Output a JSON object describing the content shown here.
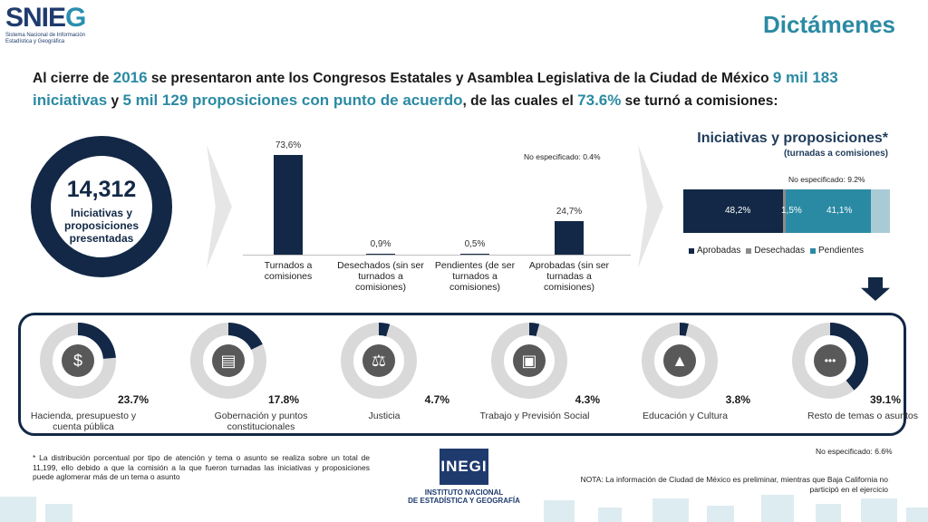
{
  "logo": {
    "word_a": "SNI",
    "word_b": "E",
    "word_c": "G",
    "subtitle": "Sistema Nacional de Información Estadística y Geográfica"
  },
  "page_title": "Dictámenes",
  "headline": {
    "p1": "Al cierre de ",
    "year": "2016",
    "p2": " se presentaron ante los Congresos Estatales y Asamblea Legislativa de la Ciudad de México ",
    "iniciativas": "9 mil 183 iniciativas",
    "p3": " y ",
    "proposiciones": "5 mil 129 proposiciones con punto de acuerdo",
    "p4": ", de las cuales el ",
    "pct": "73.6%",
    "p5": " se turnó a comisiones:"
  },
  "total": {
    "value": "14,312",
    "label": "Iniciativas y proposiciones presentadas"
  },
  "chart_data": [
    {
      "type": "bar",
      "categories": [
        "Turnados a comisiones",
        "Desechados (sin ser turnados a comisiones)",
        "Pendientes (de ser turnados a comisiones)",
        "Aprobadas (sin ser turnadas a comisiones)"
      ],
      "values": [
        73.6,
        0.9,
        0.5,
        24.7
      ],
      "value_labels": [
        "73,6%",
        "0,9%",
        "0,5%",
        "24,7%"
      ],
      "note": "No especificado: 0.4%",
      "ylim": [
        0,
        80
      ]
    },
    {
      "type": "bar",
      "stacked": true,
      "title": "Iniciativas y proposiciones*",
      "subtitle": "(turnadas a comisiones)",
      "series": [
        {
          "name": "Aprobadas",
          "value": 48.2,
          "label": "48,2%",
          "color": "#122846"
        },
        {
          "name": "Desechadas",
          "value": 1.5,
          "label": "1,5%",
          "color": "#8c8c8c"
        },
        {
          "name": "Pendientes",
          "value": 41.1,
          "label": "41,1%",
          "color": "#2b8aa3"
        }
      ],
      "note": "No especificado: 9.2%",
      "legend": "bottom"
    },
    {
      "type": "pie",
      "title": "",
      "categories": [
        "Hacienda, presupuesto y cuenta pública",
        "Gobernación y puntos constitucionales",
        "Justicia",
        "Trabajo y Previsión Social",
        "Educación y Cultura",
        "Resto de temas o asuntos"
      ],
      "values": [
        23.7,
        17.8,
        4.7,
        4.3,
        3.8,
        39.1
      ],
      "value_labels": [
        "23.7%",
        "17.8%",
        "4.7%",
        "4.3%",
        "3.8%",
        "39.1%"
      ],
      "icons": [
        "money-bag-icon",
        "book-icon",
        "gavel-icon",
        "briefcase-icon",
        "graduation-cap-icon",
        "more-dots-icon"
      ],
      "note": "No especificado: 6.6%"
    }
  ],
  "colors": {
    "navy": "#122846",
    "teal": "#2b8aa3",
    "track": "#d9d9d9",
    "gray": "#8c8c8c"
  },
  "footnote": "* La distribución porcentual por tipo de atención y tema o asunto se realiza sobre un total de 11,199, ello debido a que la comisión a la que fueron turnadas las iniciativas y proposiciones puede aglomerar más de un tema o asunto",
  "inegi": {
    "short": "INEGI",
    "line1": "INSTITUTO NACIONAL",
    "line2": "DE ESTADÍSTICA Y GEOGRAFÍA"
  },
  "nota": "NOTA: La información de Ciudad de México es preliminar, mientras que Baja California no participó en el ejercicio"
}
